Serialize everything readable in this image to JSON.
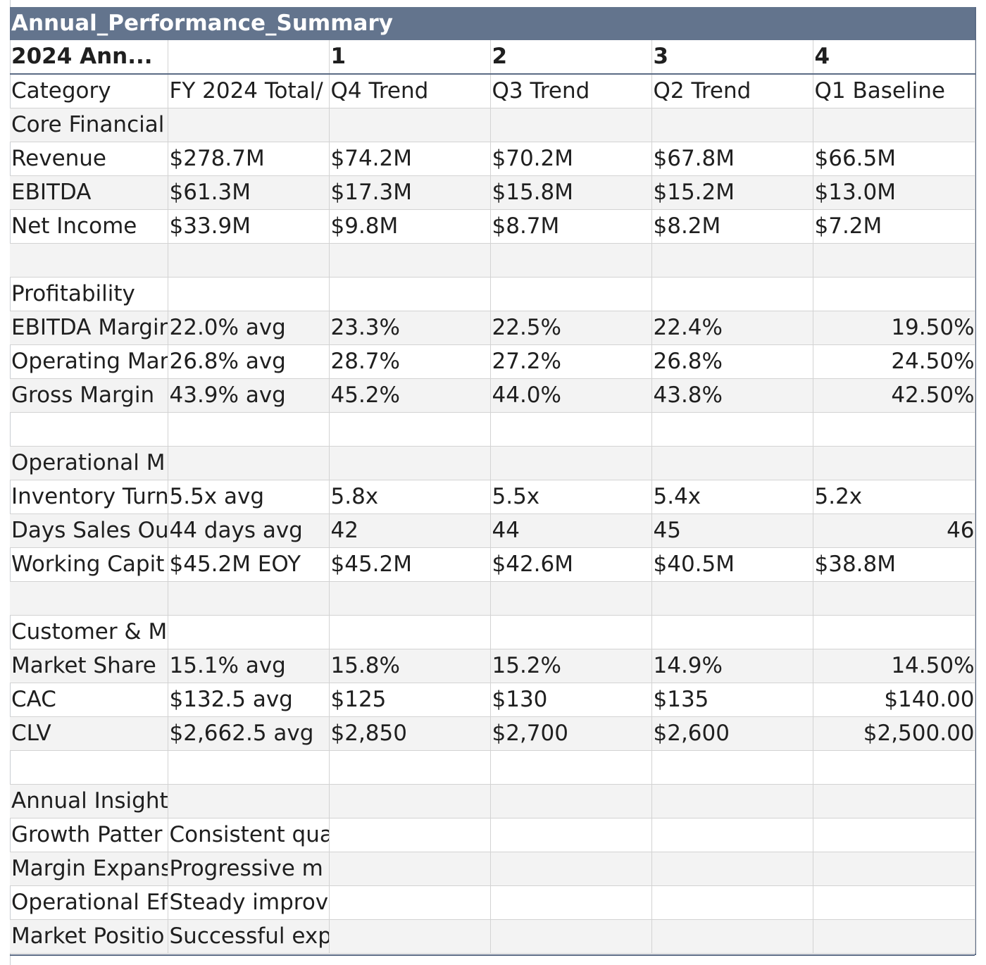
{
  "sheet": {
    "title": "Annual_Performance_Summary",
    "header_row": [
      "2024 Ann...",
      "",
      "1",
      "2",
      "3",
      "4"
    ],
    "rows": [
      {
        "cells": [
          "Category",
          "FY 2024 Total/",
          "Q4 Trend",
          "Q3 Trend",
          "Q2 Trend",
          "Q1 Baseline"
        ],
        "right_last": false
      },
      {
        "cells": [
          "Core Financial",
          "",
          "",
          "",
          "",
          ""
        ],
        "right_last": false
      },
      {
        "cells": [
          "Revenue",
          "$278.7M",
          "$74.2M",
          "$70.2M",
          "$67.8M",
          "$66.5M"
        ],
        "right_last": false
      },
      {
        "cells": [
          "EBITDA",
          "$61.3M",
          "$17.3M",
          "$15.8M",
          "$15.2M",
          "$13.0M"
        ],
        "right_last": false
      },
      {
        "cells": [
          "Net Income",
          "$33.9M",
          "$9.8M",
          "$8.7M",
          "$8.2M",
          "$7.2M"
        ],
        "right_last": false
      },
      {
        "cells": [
          "",
          "",
          "",
          "",
          "",
          ""
        ],
        "right_last": false
      },
      {
        "cells": [
          "Profitability",
          "",
          "",
          "",
          "",
          ""
        ],
        "right_last": false
      },
      {
        "cells": [
          "EBITDA Margin",
          "22.0% avg",
          "23.3%",
          "22.5%",
          "22.4%",
          "19.50%"
        ],
        "right_last": true
      },
      {
        "cells": [
          "Operating Mar",
          "26.8% avg",
          "28.7%",
          "27.2%",
          "26.8%",
          "24.50%"
        ],
        "right_last": true
      },
      {
        "cells": [
          "Gross Margin",
          "43.9% avg",
          "45.2%",
          "44.0%",
          "43.8%",
          "42.50%"
        ],
        "right_last": true
      },
      {
        "cells": [
          "",
          "",
          "",
          "",
          "",
          ""
        ],
        "right_last": false
      },
      {
        "cells": [
          "Operational M",
          "",
          "",
          "",
          "",
          ""
        ],
        "right_last": false
      },
      {
        "cells": [
          "Inventory Turn",
          "5.5x avg",
          "5.8x",
          "5.5x",
          "5.4x",
          "5.2x"
        ],
        "right_last": false
      },
      {
        "cells": [
          "Days Sales Out",
          "44 days avg",
          "42",
          "44",
          "45",
          "46"
        ],
        "right_last": true
      },
      {
        "cells": [
          "Working Capit",
          "$45.2M EOY",
          "$45.2M",
          "$42.6M",
          "$40.5M",
          "$38.8M"
        ],
        "right_last": false
      },
      {
        "cells": [
          "",
          "",
          "",
          "",
          "",
          ""
        ],
        "right_last": false
      },
      {
        "cells": [
          "Customer & M",
          "",
          "",
          "",
          "",
          ""
        ],
        "right_last": false
      },
      {
        "cells": [
          "Market Share",
          "15.1% avg",
          "15.8%",
          "15.2%",
          "14.9%",
          "14.50%"
        ],
        "right_last": true
      },
      {
        "cells": [
          "CAC",
          "$132.5 avg",
          "$125",
          "$130",
          "$135",
          "$140.00"
        ],
        "right_last": true
      },
      {
        "cells": [
          "CLV",
          "$2,662.5 avg",
          "$2,850",
          "$2,700",
          "$2,600",
          "$2,500.00"
        ],
        "right_last": true
      },
      {
        "cells": [
          "",
          "",
          "",
          "",
          "",
          ""
        ],
        "right_last": false
      },
      {
        "cells": [
          "Annual Insight",
          "",
          "",
          "",
          "",
          ""
        ],
        "right_last": false
      },
      {
        "cells": [
          "Growth Patter",
          "Consistent qua",
          "",
          "",
          "",
          ""
        ],
        "right_last": false
      },
      {
        "cells": [
          "Margin Expans",
          "Progressive m",
          "",
          "",
          "",
          ""
        ],
        "right_last": false
      },
      {
        "cells": [
          "Operational Ef",
          "Steady improv",
          "",
          "",
          "",
          ""
        ],
        "right_last": false
      },
      {
        "cells": [
          "Market Positio",
          "Successful exp",
          "",
          "",
          "",
          ""
        ],
        "right_last": false
      }
    ]
  }
}
